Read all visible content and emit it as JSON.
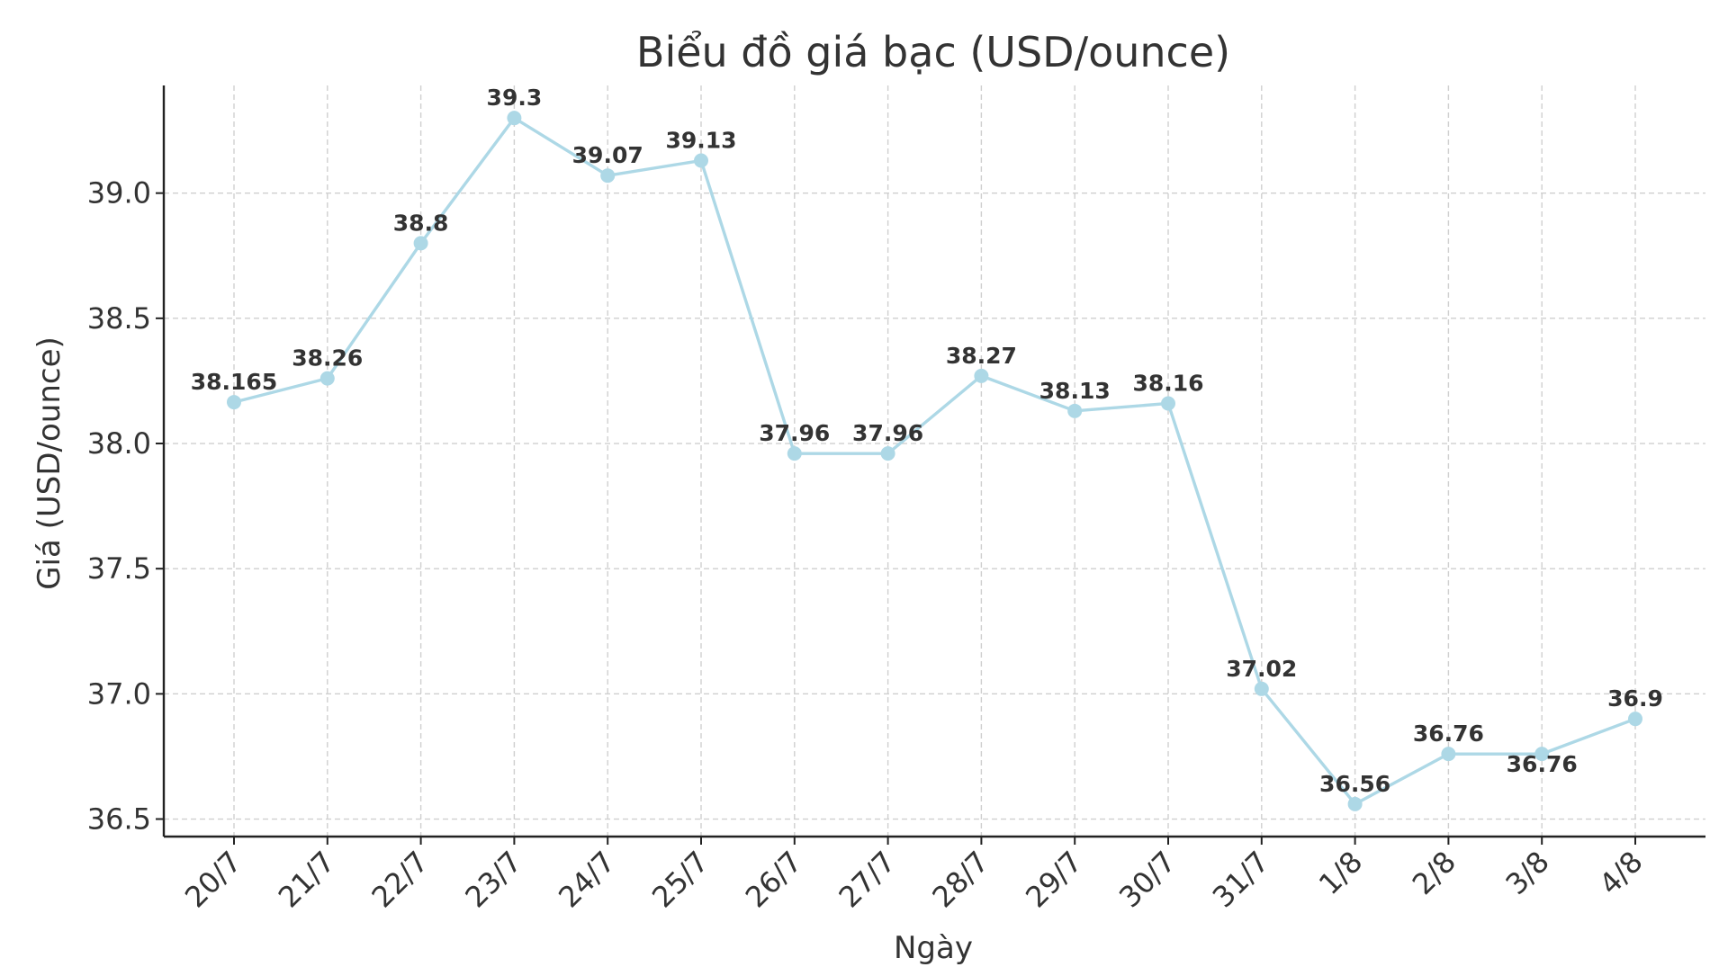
{
  "chart_data": {
    "type": "line",
    "title": "Biểu đồ giá bạc (USD/ounce)",
    "xlabel": "Ngày",
    "ylabel": "Giá (USD/ounce)",
    "categories": [
      "20/7",
      "21/7",
      "22/7",
      "23/7",
      "24/7",
      "25/7",
      "26/7",
      "27/7",
      "28/7",
      "29/7",
      "30/7",
      "31/7",
      "1/8",
      "2/8",
      "3/8",
      "4/8"
    ],
    "series": [
      {
        "values": [
          38.165,
          38.26,
          38.8,
          39.3,
          39.07,
          39.13,
          37.96,
          37.96,
          38.27,
          38.13,
          38.16,
          37.02,
          36.56,
          36.76,
          36.76,
          36.9
        ],
        "labels": [
          "38.165",
          "38.26",
          "38.8",
          "39.3",
          "39.07",
          "39.13",
          "37.96",
          "37.96",
          "38.27",
          "38.13",
          "38.16",
          "37.02",
          "36.56",
          "36.76",
          "36.76",
          "36.9"
        ]
      }
    ],
    "yticks": [
      36.5,
      37.0,
      37.5,
      38.0,
      38.5,
      39.0
    ],
    "ytick_labels": [
      "36.5",
      "37.0",
      "37.5",
      "38.0",
      "38.5",
      "39.0"
    ],
    "ylim": [
      36.43,
      39.43
    ],
    "grid": true,
    "legend": "none",
    "colors": {
      "line": "#add8e6",
      "text": "#333333",
      "axis": "#222222",
      "grid": "#cfcfcf"
    }
  }
}
